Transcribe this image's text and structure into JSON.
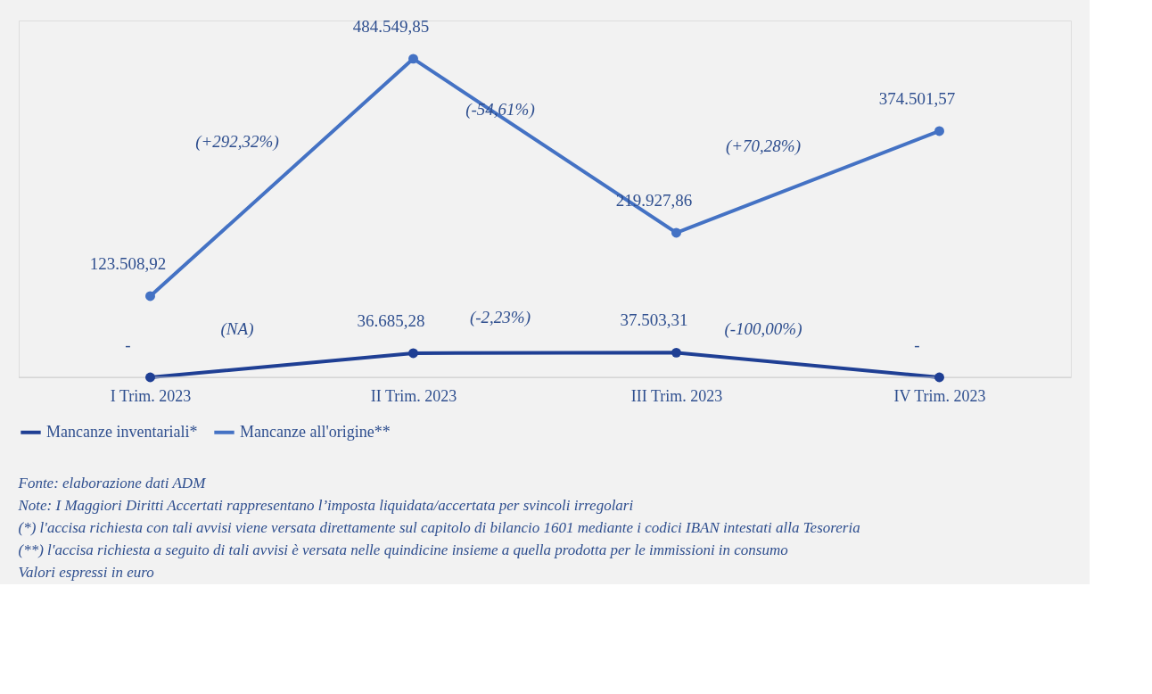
{
  "chart_data": {
    "type": "line",
    "categories": [
      "I Trim. 2023",
      "II Trim. 2023",
      "III Trim. 2023",
      "IV Trim. 2023"
    ],
    "series": [
      {
        "name": "Mancanze inventariali*",
        "color": "#1f3f94",
        "values": [
          0,
          36685.28,
          37503.31,
          0
        ],
        "value_labels": [
          "-",
          "36.685,28",
          "37.503,31",
          "-"
        ]
      },
      {
        "name": "Mancanze all'origine**",
        "color": "#4472c4",
        "values": [
          123508.92,
          484549.85,
          219927.86,
          374501.57
        ],
        "value_labels": [
          "123.508,92",
          "484.549,85",
          "219.927,86",
          "374.501,57"
        ]
      }
    ],
    "annotations": [
      "(NA)",
      "(-2,23%)",
      "(-100,00%)",
      "(+292,32%)",
      "(-54,61%)",
      "(+70,28%)",
      "Fonte: elaborazione dati ADM",
      "Note: I Maggiori Diritti Accertati rappresentano l’imposta liquidata/accertata per svincoli irregolari",
      "(*) l'accisa richiesta con tali avvisi viene versata direttamente sul capitolo di bilancio 1601 mediante i codici IBAN intestati alla Tesoreria",
      "(**) l'accisa richiesta a seguito di tali avvisi è versata nelle quindicine insieme a quella prodotta per le immissioni in consumo",
      "Valori espressi in euro"
    ],
    "legend": "bottom",
    "marker": "circle",
    "line_style": "solid",
    "grid": false
  }
}
